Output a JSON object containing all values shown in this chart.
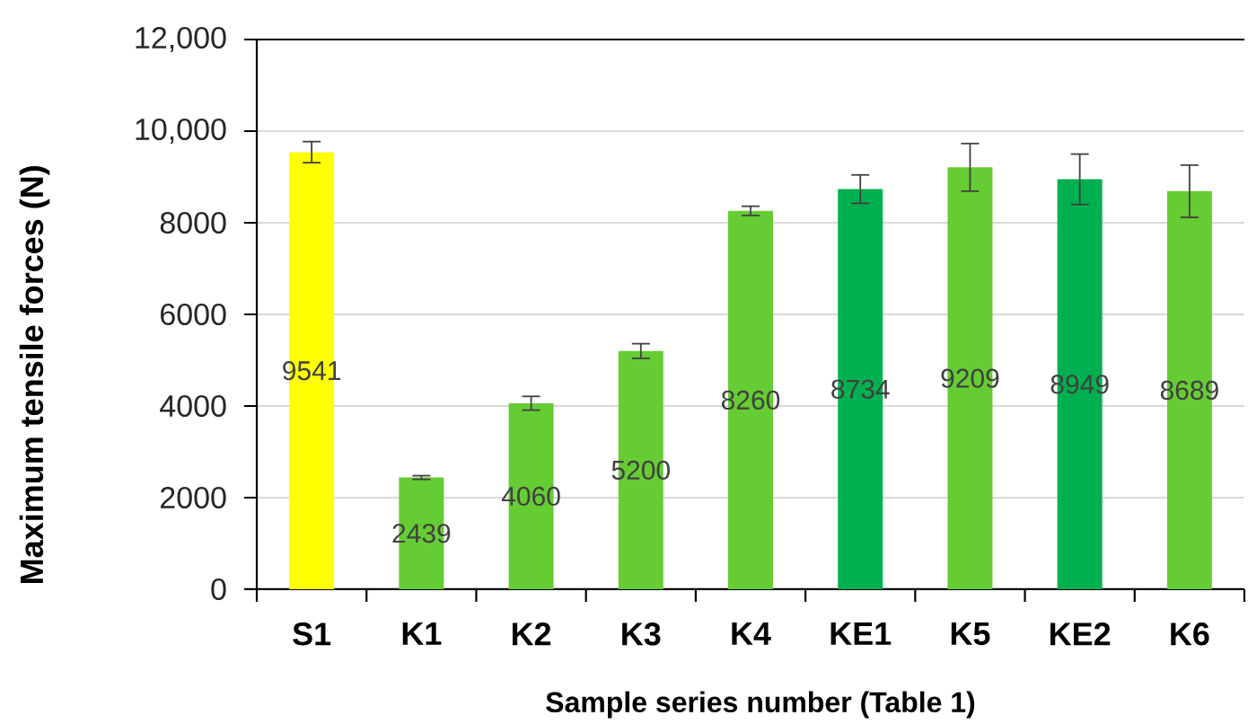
{
  "chart_data": {
    "type": "bar",
    "categories": [
      "S1",
      "K1",
      "K2",
      "K3",
      "K4",
      "KE1",
      "K5",
      "KE2",
      "K6"
    ],
    "values": [
      9541,
      2439,
      4060,
      5200,
      8260,
      8734,
      9209,
      8949,
      8689
    ],
    "errors": [
      230,
      40,
      150,
      160,
      100,
      310,
      520,
      550,
      570
    ],
    "colors": [
      "#ffff00",
      "#66cc33",
      "#66cc33",
      "#66cc33",
      "#66cc33",
      "#00b050",
      "#66cc33",
      "#00b050",
      "#66cc33"
    ],
    "xlabel": "Sample series number (Table 1)",
    "ylabel": "Maximum tensile forces (N)",
    "ylim": [
      0,
      12000
    ],
    "yticks": [
      0,
      2000,
      4000,
      6000,
      8000,
      {
        "value": 10000,
        "label": "10,000"
      },
      {
        "value": 12000,
        "label": "12,000"
      }
    ],
    "grid": "y",
    "data_labels": true
  }
}
